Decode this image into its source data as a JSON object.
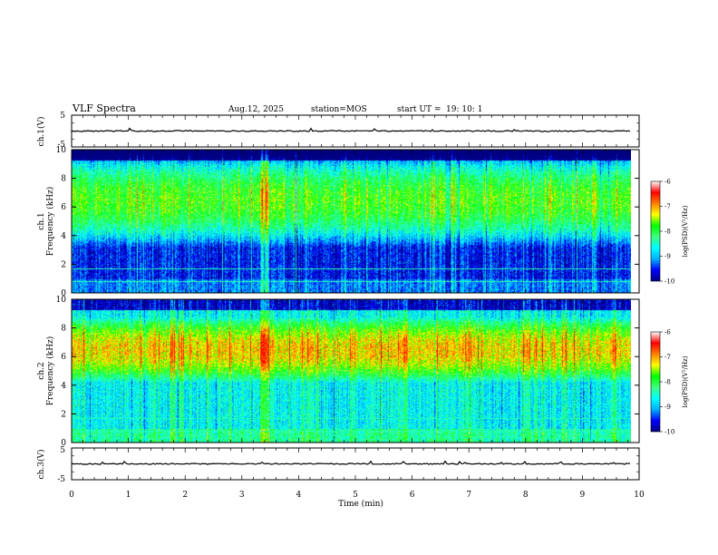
{
  "header": {
    "title": "VLF Spectra",
    "date": "Aug.12, 2025",
    "station": "station=MOS",
    "start_label": "start  UT =",
    "start_time": "19: 10: 1"
  },
  "chart_data": [
    {
      "type": "line",
      "name": "ch1-waveform",
      "ylabel": "ch.1(V)",
      "ylim": [
        -5,
        5
      ],
      "yticks": [
        "5",
        "-5"
      ],
      "level": 0
    },
    {
      "type": "heatmap",
      "name": "ch1-spectrogram",
      "ylabel_line1": "ch.1",
      "ylabel_line2": "Frequency (kHz)",
      "ylim": [
        0,
        10
      ],
      "yticks": [
        "0",
        "2",
        "4",
        "6",
        "8",
        "10"
      ],
      "colorbar": {
        "label": "log(PSD)(V²/Hz)",
        "range": [
          -10,
          -6
        ],
        "ticks": [
          "-6",
          "-7",
          "-8",
          "-9",
          "-10"
        ]
      },
      "band_khz": [
        4,
        9
      ],
      "band_level": -7.5,
      "floor_level": -9.5,
      "lines_khz": [
        1.7,
        0.8
      ]
    },
    {
      "type": "heatmap",
      "name": "ch2-spectrogram",
      "ylabel_line1": "ch.2",
      "ylabel_line2": "Frequency (kHz)",
      "ylim": [
        0,
        10
      ],
      "yticks": [
        "0",
        "2",
        "4",
        "6",
        "8",
        "10"
      ],
      "colorbar": {
        "label": "log(PSD)(V²/Hz)",
        "range": [
          -10,
          -6
        ],
        "ticks": [
          "-6",
          "-7",
          "-8",
          "-9",
          "-10"
        ]
      },
      "band_khz": [
        5,
        8
      ],
      "band_level": -6.8,
      "floor_level": -8.5,
      "lines_khz": [
        1.7,
        0.8
      ]
    },
    {
      "type": "line",
      "name": "ch3-waveform",
      "ylabel": "ch.3(V)",
      "ylim": [
        -5,
        5
      ],
      "yticks": [
        "5",
        "-5"
      ],
      "level": 0
    }
  ],
  "xaxis": {
    "label": "Time  (min)",
    "range": [
      0,
      10
    ],
    "ticks": [
      "0",
      "1",
      "2",
      "3",
      "4",
      "5",
      "6",
      "7",
      "8",
      "9",
      "10"
    ],
    "data_end": 9.85
  },
  "colors": {
    "jet": [
      "#000080",
      "#0000ff",
      "#00b0ff",
      "#00ffff",
      "#40ff80",
      "#00ff00",
      "#ffff00",
      "#ff8000",
      "#ff0000",
      "#ffffff"
    ]
  }
}
